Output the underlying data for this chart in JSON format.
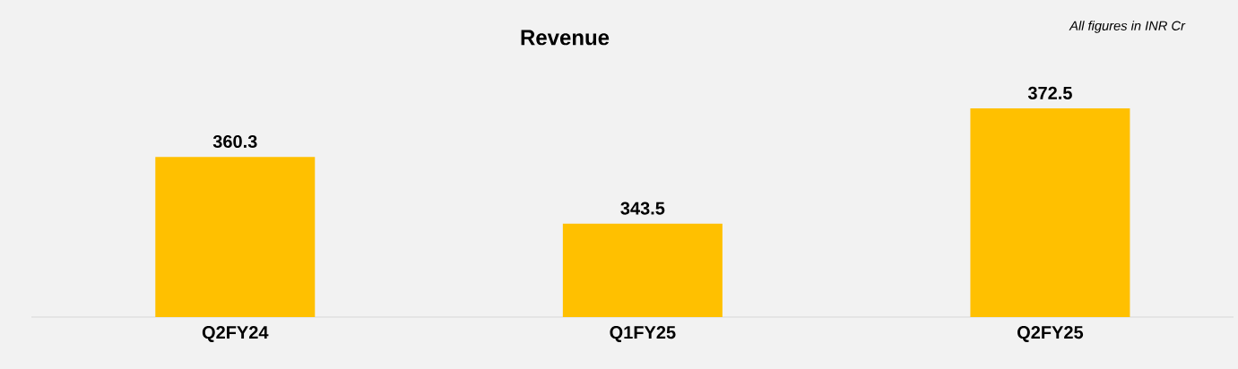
{
  "chart_data": {
    "type": "bar",
    "title": "Revenue",
    "annotations": [
      "All figures in INR Cr"
    ],
    "categories": [
      "Q2FY24",
      "Q1FY25",
      "Q2FY25"
    ],
    "values": [
      360.3,
      343.5,
      372.5
    ],
    "color": "#ffc000",
    "ylim": [
      320,
      372.5
    ],
    "data_labels": true,
    "tick_labels": "x"
  }
}
